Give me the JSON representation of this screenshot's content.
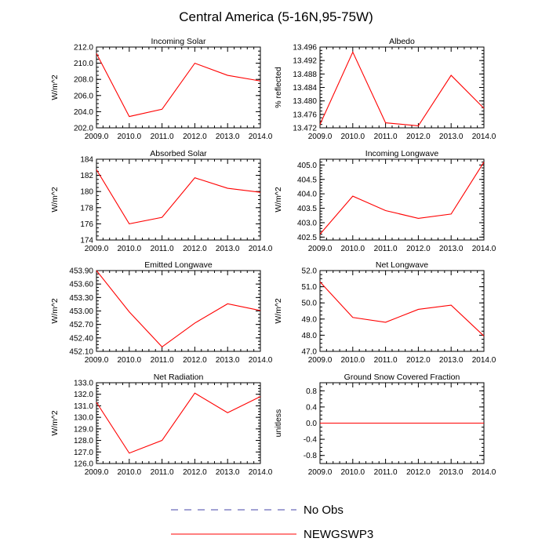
{
  "title": "Central America (5-16N,95-75W)",
  "colors": {
    "model": "#ff0000",
    "obs": "#4444aa",
    "axis": "#000000"
  },
  "legend": [
    {
      "label": "No Obs",
      "style": "dashed",
      "color": "#4444aa"
    },
    {
      "label": "NEWGSWP3",
      "style": "solid",
      "color": "#ff0000"
    }
  ],
  "chart_data": [
    {
      "type": "line",
      "title": "Incoming Solar",
      "ylabel": "W/m^2",
      "x": [
        2009,
        2010,
        2011,
        2012,
        2013,
        2014
      ],
      "xticks": [
        "2009.0",
        "2010.0",
        "2011.0",
        "2012.0",
        "2013.0",
        "2014.0"
      ],
      "ylim": [
        202.0,
        212.0
      ],
      "yticks": [
        202.0,
        204.0,
        206.0,
        208.0,
        210.0,
        212.0
      ],
      "ytick_labels": [
        "202.0",
        "204.0",
        "206.0",
        "208.0",
        "210.0",
        "212.0"
      ],
      "minor": 0.5,
      "series": [
        {
          "name": "NEWGSWP3",
          "values": [
            211.2,
            203.4,
            204.3,
            210.0,
            208.5,
            207.8
          ]
        }
      ]
    },
    {
      "type": "line",
      "title": "Albedo",
      "ylabel": "% reflected",
      "x": [
        2009,
        2010,
        2011,
        2012,
        2013,
        2014
      ],
      "xticks": [
        "2009.0",
        "2010.0",
        "2011.0",
        "2012.0",
        "2013.0",
        "2014.0"
      ],
      "ylim": [
        13.472,
        13.496
      ],
      "yticks": [
        13.472,
        13.476,
        13.48,
        13.484,
        13.488,
        13.492,
        13.496
      ],
      "ytick_labels": [
        "13.472",
        "13.476",
        "13.480",
        "13.484",
        "13.488",
        "13.492",
        "13.496"
      ],
      "minor": 0.001,
      "series": [
        {
          "name": "NEWGSWP3",
          "values": [
            13.473,
            13.4945,
            13.4735,
            13.4726,
            13.4876,
            13.4778
          ]
        }
      ]
    },
    {
      "type": "line",
      "title": "Absorbed Solar",
      "ylabel": "W/m^2",
      "x": [
        2009,
        2010,
        2011,
        2012,
        2013,
        2014
      ],
      "xticks": [
        "2009.0",
        "2010.0",
        "2011.0",
        "2012.0",
        "2013.0",
        "2014.0"
      ],
      "ylim": [
        174,
        184
      ],
      "yticks": [
        174,
        176,
        178,
        180,
        182,
        184
      ],
      "ytick_labels": [
        "174",
        "176",
        "178",
        "180",
        "182",
        "184"
      ],
      "minor": 0.5,
      "series": [
        {
          "name": "NEWGSWP3",
          "values": [
            182.7,
            176.0,
            176.8,
            181.7,
            180.4,
            179.9
          ]
        }
      ]
    },
    {
      "type": "line",
      "title": "Incoming Longwave",
      "ylabel": "W/m^2",
      "x": [
        2009,
        2010,
        2011,
        2012,
        2013,
        2014
      ],
      "xticks": [
        "2009.0",
        "2010.0",
        "2011.0",
        "2012.0",
        "2013.0",
        "2014.0"
      ],
      "ylim": [
        402.4,
        405.2
      ],
      "yticks": [
        402.5,
        403.0,
        403.5,
        404.0,
        404.5,
        405.0
      ],
      "ytick_labels": [
        "402.5",
        "403.0",
        "403.5",
        "404.0",
        "404.5",
        "405.0"
      ],
      "minor": 0.1,
      "series": [
        {
          "name": "NEWGSWP3",
          "values": [
            402.6,
            403.92,
            403.42,
            403.15,
            403.3,
            405.1
          ]
        }
      ]
    },
    {
      "type": "line",
      "title": "Emitted Longwave",
      "ylabel": "W/m^2",
      "x": [
        2009,
        2010,
        2011,
        2012,
        2013,
        2014
      ],
      "xticks": [
        "2009.0",
        "2010.0",
        "2011.0",
        "2012.0",
        "2013.0",
        "2014.0"
      ],
      "ylim": [
        452.1,
        453.9
      ],
      "yticks": [
        452.1,
        452.4,
        452.7,
        453.0,
        453.3,
        453.6,
        453.9
      ],
      "ytick_labels": [
        "452.10",
        "452.40",
        "452.70",
        "453.00",
        "453.30",
        "453.60",
        "453.90"
      ],
      "minor": 0.075,
      "series": [
        {
          "name": "NEWGSWP3",
          "values": [
            453.9,
            452.98,
            452.2,
            452.73,
            453.16,
            453.01
          ]
        }
      ]
    },
    {
      "type": "line",
      "title": "Net Longwave",
      "ylabel": "W/m^2",
      "x": [
        2009,
        2010,
        2011,
        2012,
        2013,
        2014
      ],
      "xticks": [
        "2009.0",
        "2010.0",
        "2011.0",
        "2012.0",
        "2013.0",
        "2014.0"
      ],
      "ylim": [
        47.0,
        52.0
      ],
      "yticks": [
        47.0,
        48.0,
        49.0,
        50.0,
        51.0,
        52.0
      ],
      "ytick_labels": [
        "47.0",
        "48.0",
        "49.0",
        "50.0",
        "51.0",
        "52.0"
      ],
      "minor": 0.25,
      "series": [
        {
          "name": "NEWGSWP3",
          "values": [
            51.3,
            49.1,
            48.8,
            49.6,
            49.86,
            47.95
          ]
        }
      ]
    },
    {
      "type": "line",
      "title": "Net Radiation",
      "ylabel": "W/m^2",
      "x": [
        2009,
        2010,
        2011,
        2012,
        2013,
        2014
      ],
      "xticks": [
        "2009.0",
        "2010.0",
        "2011.0",
        "2012.0",
        "2013.0",
        "2014.0"
      ],
      "ylim": [
        126.0,
        133.0
      ],
      "yticks": [
        126.0,
        127.0,
        128.0,
        129.0,
        130.0,
        131.0,
        132.0,
        133.0
      ],
      "ytick_labels": [
        "126.0",
        "127.0",
        "128.0",
        "129.0",
        "130.0",
        "131.0",
        "132.0",
        "133.0"
      ],
      "minor": 0.25,
      "series": [
        {
          "name": "NEWGSWP3",
          "values": [
            131.3,
            126.9,
            128.0,
            132.1,
            130.4,
            131.8
          ]
        }
      ]
    },
    {
      "type": "line",
      "title": "Ground Snow Covered Fraction",
      "ylabel": "unitless",
      "x": [
        2009,
        2010,
        2011,
        2012,
        2013,
        2014
      ],
      "xticks": [
        "2009.0",
        "2010.0",
        "2011.0",
        "2012.0",
        "2013.0",
        "2014.0"
      ],
      "ylim": [
        -1.0,
        1.0
      ],
      "yticks": [
        -0.8,
        -0.4,
        0.0,
        0.4,
        0.8
      ],
      "ytick_labels": [
        "-0.8",
        "-0.4",
        "0.0",
        "0.4",
        "0.8"
      ],
      "minor": 0.1,
      "series": [
        {
          "name": "NEWGSWP3",
          "values": [
            0,
            0,
            0,
            0,
            0,
            0
          ]
        }
      ]
    }
  ]
}
